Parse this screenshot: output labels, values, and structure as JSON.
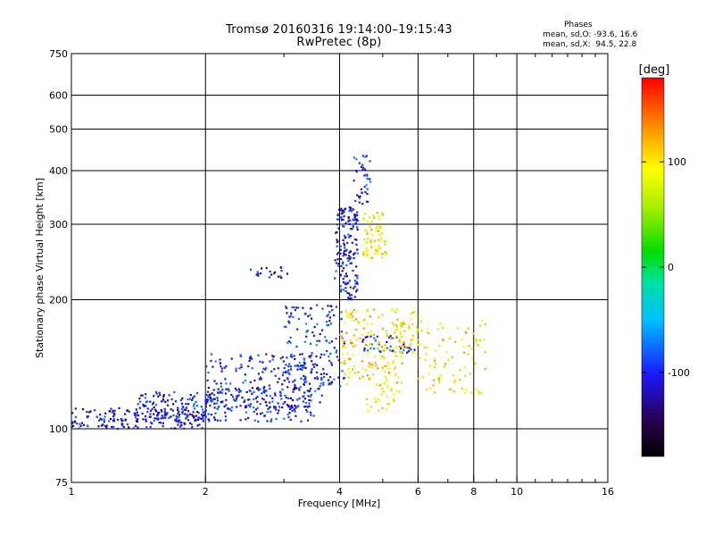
{
  "chart_data": {
    "type": "scatter",
    "title": "Tromsø 20160316 19:14:00–19:15:43",
    "subtitle": "RwPretec (8p)",
    "xlabel": "Frequency [MHz]",
    "ylabel": "Stationary phase Virtual Height [km]",
    "x_scale": "log",
    "y_scale": "log",
    "xlim": [
      1,
      16
    ],
    "ylim": [
      75,
      750
    ],
    "x_ticks": [
      1,
      2,
      4,
      6,
      8,
      10,
      16
    ],
    "x_tick_labels": [
      "1",
      "2",
      "4",
      "6",
      "8",
      "10",
      "16"
    ],
    "y_ticks": [
      75,
      100,
      200,
      300,
      400,
      500,
      600,
      750
    ],
    "y_tick_labels": [
      "75",
      "100",
      "200",
      "300",
      "400",
      "500",
      "600",
      "750"
    ],
    "grid": true,
    "colorbar": {
      "label": "[deg]",
      "range": [
        -180,
        180
      ],
      "tick_values": [
        -100,
        0,
        100
      ],
      "tick_labels": [
        "-100",
        "0",
        "100"
      ]
    },
    "stats": {
      "heading": "Phases",
      "line_o": "mean, sd,O: -93.6, 16.6",
      "line_x": "mean, sd,X:  94.5, 22.8"
    },
    "clusters": [
      {
        "component": "O",
        "x_range": [
          1.0,
          2.0
        ],
        "y_range": [
          100,
          112
        ],
        "phase": -110,
        "count": 180
      },
      {
        "component": "O",
        "x_range": [
          1.4,
          2.1
        ],
        "y_range": [
          104,
          122
        ],
        "phase": -105,
        "count": 120
      },
      {
        "component": "O",
        "x_range": [
          2.0,
          3.5
        ],
        "y_range": [
          104,
          125
        ],
        "phase": -105,
        "count": 160
      },
      {
        "component": "O",
        "x_range": [
          2.0,
          3.7
        ],
        "y_range": [
          112,
          150
        ],
        "phase": -100,
        "count": 200
      },
      {
        "component": "O",
        "x_range": [
          3.0,
          4.1
        ],
        "y_range": [
          125,
          195
        ],
        "phase": -100,
        "count": 140
      },
      {
        "component": "O",
        "x_range": [
          3.9,
          4.4
        ],
        "y_range": [
          200,
          330
        ],
        "phase": -105,
        "count": 170
      },
      {
        "component": "O",
        "x_range": [
          4.3,
          4.7
        ],
        "y_range": [
          330,
          440
        ],
        "phase": -100,
        "count": 40
      },
      {
        "component": "O",
        "x_range": [
          4.5,
          5.9
        ],
        "y_range": [
          150,
          165
        ],
        "phase": -100,
        "count": 40
      },
      {
        "component": "O",
        "x_range": [
          2.5,
          3.3
        ],
        "y_range": [
          225,
          240
        ],
        "phase": -115,
        "count": 20
      },
      {
        "component": "X",
        "x_range": [
          4.0,
          5.6
        ],
        "y_range": [
          125,
          190
        ],
        "phase": 105,
        "count": 160
      },
      {
        "component": "X",
        "x_range": [
          4.5,
          5.1
        ],
        "y_range": [
          250,
          320
        ],
        "phase": 100,
        "count": 70
      },
      {
        "component": "X",
        "x_range": [
          5.3,
          6.0
        ],
        "y_range": [
          150,
          190
        ],
        "phase": 80,
        "count": 35
      },
      {
        "component": "X",
        "x_range": [
          6.0,
          8.5
        ],
        "y_range": [
          120,
          180
        ],
        "phase": 95,
        "count": 90
      },
      {
        "component": "X",
        "x_range": [
          4.6,
          5.6
        ],
        "y_range": [
          110,
          125
        ],
        "phase": 95,
        "count": 25
      }
    ]
  }
}
